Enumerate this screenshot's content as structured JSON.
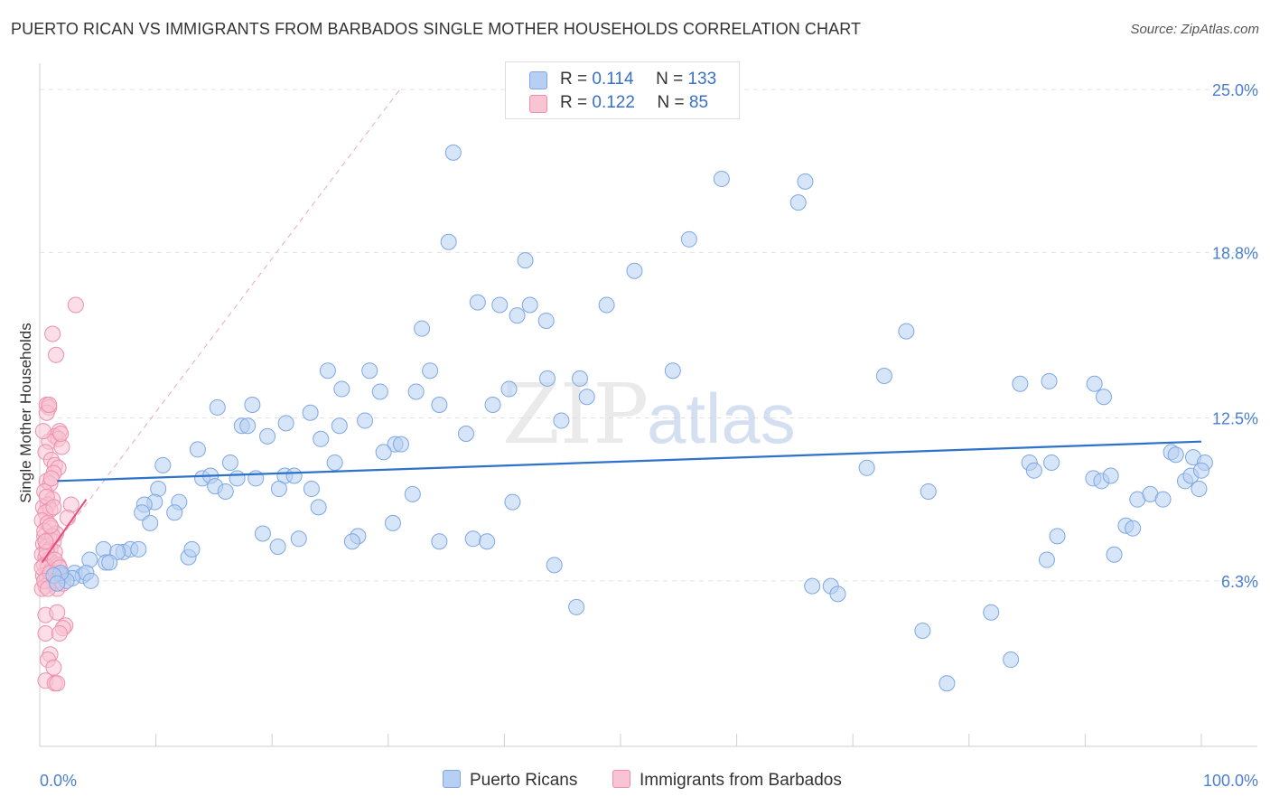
{
  "title": "PUERTO RICAN VS IMMIGRANTS FROM BARBADOS SINGLE MOTHER HOUSEHOLDS CORRELATION CHART",
  "source": "Source: ZipAtlas.com",
  "watermark": {
    "zip": "ZIP",
    "atlas": "atlas"
  },
  "legend": {
    "rows": [
      {
        "r_label": "R =",
        "r_value": "0.114",
        "n_label": "N =",
        "n_value": "133"
      },
      {
        "r_label": "R =",
        "r_value": "0.122",
        "n_label": "N =",
        "n_value": "85"
      }
    ]
  },
  "bottom_legend": {
    "series1": "Puerto Ricans",
    "series2": "Immigrants from Barbados"
  },
  "chart_data": {
    "type": "scatter",
    "title": "PUERTO RICAN VS IMMIGRANTS FROM BARBADOS SINGLE MOTHER HOUSEHOLDS CORRELATION CHART",
    "xlabel": "",
    "ylabel": "Single Mother Households",
    "xlim": [
      0,
      100
    ],
    "ylim": [
      0,
      26
    ],
    "x_tick_labels": [
      "0.0%",
      "100.0%"
    ],
    "y_ticks": [
      {
        "value": 25.0,
        "label": "25.0%"
      },
      {
        "value": 18.8,
        "label": "18.8%"
      },
      {
        "value": 12.5,
        "label": "12.5%"
      },
      {
        "value": 6.3,
        "label": "6.3%"
      }
    ],
    "colors": {
      "series1_fill": "#b7cff2",
      "series1_stroke": "#7ea7e3",
      "series2_fill": "#f8c3d3",
      "series2_stroke": "#ee8fad",
      "trend1": "#2e72c9",
      "trend2": "#e8487a",
      "accent": "#3a6fc8"
    },
    "series": [
      {
        "name": "Puerto Ricans",
        "R": 0.114,
        "N": 133,
        "trend": {
          "x0": 1.5,
          "y0": 10.1,
          "x1": 100,
          "y1": 11.6
        },
        "points": [
          [
            35.6,
            22.6
          ],
          [
            58.7,
            21.6
          ],
          [
            65.9,
            21.5
          ],
          [
            65.3,
            20.7
          ],
          [
            35.2,
            19.2
          ],
          [
            55.9,
            19.3
          ],
          [
            41.8,
            18.5
          ],
          [
            51.2,
            18.1
          ],
          [
            37.7,
            16.9
          ],
          [
            39.6,
            16.8
          ],
          [
            42.2,
            16.8
          ],
          [
            48.8,
            16.8
          ],
          [
            41.1,
            16.4
          ],
          [
            43.6,
            16.2
          ],
          [
            32.9,
            15.9
          ],
          [
            74.6,
            15.8
          ],
          [
            24.8,
            14.3
          ],
          [
            28.4,
            14.3
          ],
          [
            33.6,
            14.3
          ],
          [
            43.7,
            14.0
          ],
          [
            46.5,
            14.0
          ],
          [
            72.7,
            14.1
          ],
          [
            26.0,
            13.6
          ],
          [
            29.3,
            13.5
          ],
          [
            40.4,
            13.6
          ],
          [
            32.4,
            13.5
          ],
          [
            47.1,
            13.3
          ],
          [
            84.4,
            13.8
          ],
          [
            86.9,
            13.9
          ],
          [
            90.8,
            13.8
          ],
          [
            91.6,
            13.3
          ],
          [
            15.3,
            12.9
          ],
          [
            23.3,
            12.7
          ],
          [
            21.2,
            12.3
          ],
          [
            25.8,
            12.2
          ],
          [
            28.0,
            12.4
          ],
          [
            34.4,
            13.0
          ],
          [
            39.0,
            13.0
          ],
          [
            17.4,
            12.2
          ],
          [
            17.9,
            12.2
          ],
          [
            19.6,
            11.8
          ],
          [
            24.2,
            11.7
          ],
          [
            30.6,
            11.5
          ],
          [
            31.1,
            11.5
          ],
          [
            29.6,
            11.2
          ],
          [
            36.7,
            11.9
          ],
          [
            13.6,
            11.3
          ],
          [
            16.4,
            10.8
          ],
          [
            25.4,
            10.8
          ],
          [
            14.0,
            10.2
          ],
          [
            14.7,
            10.3
          ],
          [
            15.1,
            9.9
          ],
          [
            18.6,
            10.2
          ],
          [
            17.0,
            10.2
          ],
          [
            21.1,
            10.3
          ],
          [
            21.9,
            10.3
          ],
          [
            20.6,
            9.8
          ],
          [
            23.4,
            9.8
          ],
          [
            10.2,
            9.8
          ],
          [
            16.0,
            9.7
          ],
          [
            9.9,
            9.3
          ],
          [
            12.0,
            9.3
          ],
          [
            9.0,
            9.2
          ],
          [
            11.6,
            8.9
          ],
          [
            8.8,
            8.9
          ],
          [
            24.0,
            9.1
          ],
          [
            32.1,
            9.6
          ],
          [
            40.7,
            9.3
          ],
          [
            9.5,
            8.5
          ],
          [
            30.4,
            8.5
          ],
          [
            19.2,
            8.1
          ],
          [
            27.4,
            8.0
          ],
          [
            22.3,
            7.9
          ],
          [
            26.9,
            7.8
          ],
          [
            34.4,
            7.8
          ],
          [
            37.3,
            7.9
          ],
          [
            38.5,
            7.8
          ],
          [
            5.5,
            7.5
          ],
          [
            7.2,
            7.4
          ],
          [
            7.8,
            7.5
          ],
          [
            8.5,
            7.5
          ],
          [
            6.7,
            7.4
          ],
          [
            4.3,
            7.1
          ],
          [
            5.7,
            7.0
          ],
          [
            6.0,
            7.0
          ],
          [
            12.8,
            7.2
          ],
          [
            20.5,
            7.6
          ],
          [
            2.0,
            6.5
          ],
          [
            3.0,
            6.6
          ],
          [
            3.7,
            6.5
          ],
          [
            4.0,
            6.6
          ],
          [
            4.4,
            6.3
          ],
          [
            2.8,
            6.4
          ],
          [
            2.3,
            6.3
          ],
          [
            1.8,
            6.6
          ],
          [
            1.2,
            6.5
          ],
          [
            1.5,
            6.2
          ],
          [
            44.3,
            6.9
          ],
          [
            46.2,
            5.3
          ],
          [
            66.5,
            6.1
          ],
          [
            68.1,
            6.1
          ],
          [
            68.7,
            5.8
          ],
          [
            71.2,
            10.6
          ],
          [
            76.5,
            9.7
          ],
          [
            76.0,
            4.4
          ],
          [
            78.1,
            2.4
          ],
          [
            81.9,
            5.1
          ],
          [
            83.6,
            3.3
          ],
          [
            85.2,
            10.8
          ],
          [
            85.6,
            10.5
          ],
          [
            87.1,
            10.8
          ],
          [
            87.6,
            8.0
          ],
          [
            86.7,
            7.1
          ],
          [
            90.7,
            10.2
          ],
          [
            91.4,
            10.1
          ],
          [
            92.2,
            10.3
          ],
          [
            92.5,
            7.3
          ],
          [
            93.5,
            8.4
          ],
          [
            94.1,
            8.3
          ],
          [
            94.5,
            9.4
          ],
          [
            95.6,
            9.6
          ],
          [
            96.7,
            9.4
          ],
          [
            97.4,
            11.2
          ],
          [
            97.8,
            11.1
          ],
          [
            98.6,
            10.1
          ],
          [
            99.1,
            10.3
          ],
          [
            99.3,
            11.0
          ],
          [
            100.3,
            10.8
          ],
          [
            99.8,
            9.8
          ],
          [
            100.0,
            10.5
          ],
          [
            13.1,
            7.5
          ],
          [
            44.9,
            12.4
          ],
          [
            54.5,
            14.3
          ],
          [
            18.3,
            13.0
          ],
          [
            10.6,
            10.7
          ]
        ]
      },
      {
        "name": "Immigrants from Barbados",
        "R": 0.122,
        "N": 85,
        "trend": {
          "x0": 0.2,
          "y0": 7.0,
          "x1": 4.0,
          "y1": 9.4
        },
        "dashed_trend": {
          "x0": 0.2,
          "y0": 7.0,
          "x1": 31.0,
          "y1": 25.0
        },
        "points": [
          [
            3.1,
            16.8
          ],
          [
            1.1,
            15.7
          ],
          [
            1.4,
            14.9
          ],
          [
            0.6,
            13.0
          ],
          [
            0.8,
            12.9
          ],
          [
            0.6,
            12.7
          ],
          [
            1.7,
            12.0
          ],
          [
            1.3,
            11.8
          ],
          [
            1.6,
            11.7
          ],
          [
            0.8,
            11.6
          ],
          [
            1.9,
            11.4
          ],
          [
            0.5,
            11.2
          ],
          [
            1.0,
            10.9
          ],
          [
            1.3,
            10.7
          ],
          [
            1.6,
            10.6
          ],
          [
            1.2,
            10.4
          ],
          [
            0.6,
            10.1
          ],
          [
            0.9,
            10.0
          ],
          [
            0.4,
            9.7
          ],
          [
            1.1,
            9.4
          ],
          [
            0.7,
            9.2
          ],
          [
            0.3,
            9.1
          ],
          [
            0.9,
            9.0
          ],
          [
            0.5,
            8.9
          ],
          [
            2.7,
            9.2
          ],
          [
            2.4,
            8.7
          ],
          [
            0.2,
            8.6
          ],
          [
            0.7,
            8.5
          ],
          [
            1.0,
            8.3
          ],
          [
            1.4,
            8.1
          ],
          [
            0.4,
            8.0
          ],
          [
            0.8,
            7.9
          ],
          [
            1.2,
            7.8
          ],
          [
            0.3,
            7.7
          ],
          [
            0.6,
            7.6
          ],
          [
            0.9,
            7.5
          ],
          [
            1.3,
            7.4
          ],
          [
            0.2,
            7.3
          ],
          [
            0.5,
            7.2
          ],
          [
            0.8,
            7.1
          ],
          [
            1.1,
            7.0
          ],
          [
            0.4,
            6.9
          ],
          [
            0.7,
            6.8
          ],
          [
            1.0,
            6.7
          ],
          [
            1.4,
            6.6
          ],
          [
            0.3,
            6.5
          ],
          [
            0.6,
            6.4
          ],
          [
            0.9,
            6.3
          ],
          [
            1.2,
            6.2
          ],
          [
            0.5,
            6.1
          ],
          [
            1.5,
            6.0
          ],
          [
            1.8,
            6.5
          ],
          [
            0.2,
            6.0
          ],
          [
            1.6,
            6.9
          ],
          [
            0.5,
            5.0
          ],
          [
            1.5,
            5.1
          ],
          [
            2.2,
            4.6
          ],
          [
            2.0,
            4.5
          ],
          [
            0.5,
            4.3
          ],
          [
            1.7,
            4.3
          ],
          [
            0.9,
            3.5
          ],
          [
            0.7,
            3.3
          ],
          [
            1.2,
            3.0
          ],
          [
            0.5,
            2.5
          ],
          [
            1.3,
            2.4
          ],
          [
            1.5,
            2.4
          ],
          [
            0.8,
            13.0
          ],
          [
            0.4,
            8.2
          ],
          [
            1.1,
            8.0
          ],
          [
            0.6,
            7.4
          ],
          [
            1.3,
            7.1
          ],
          [
            0.2,
            6.8
          ],
          [
            1.7,
            6.8
          ],
          [
            0.9,
            6.6
          ],
          [
            0.4,
            6.3
          ],
          [
            1.4,
            6.3
          ],
          [
            0.7,
            6.0
          ],
          [
            2.0,
            6.2
          ],
          [
            1.0,
            10.2
          ],
          [
            0.3,
            12.0
          ],
          [
            1.8,
            11.9
          ],
          [
            0.6,
            9.5
          ],
          [
            1.2,
            9.1
          ],
          [
            0.9,
            8.4
          ],
          [
            0.5,
            7.8
          ]
        ]
      }
    ]
  }
}
